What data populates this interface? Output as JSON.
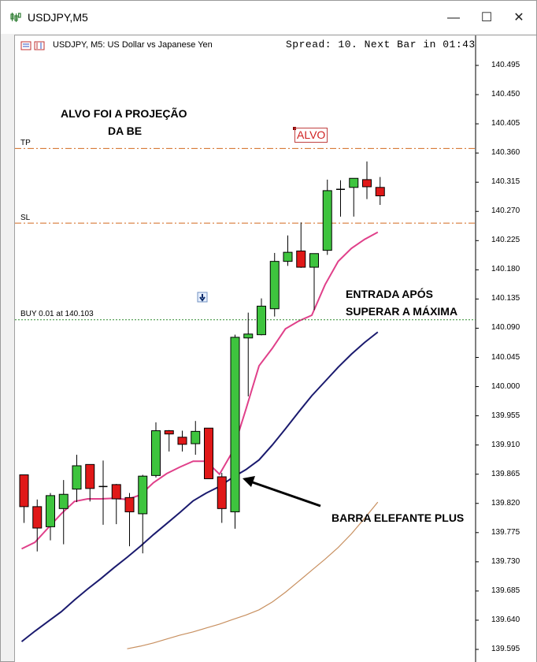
{
  "window": {
    "title": "USDJPY,M5",
    "minimize_label": "—",
    "maximize_label": "☐",
    "close_label": "✕"
  },
  "chart": {
    "symbol_description": "USDJPY, M5:  US Dollar vs Japanese Yen",
    "spread_text": "Spread: 10. Next Bar in 01:43",
    "annotations": {
      "target_line1": "ALVO FOI A PROJEÇÃO",
      "target_line2": "DA BE",
      "entry_line1": "ENTRADA APÓS",
      "entry_line2": "SUPERAR A MÁXIMA",
      "elephant_bar": "BARRA ELEFANTE PLUS",
      "alvo_marker": "ALVO"
    },
    "levels": {
      "tp_label": "TP",
      "sl_label": "SL",
      "buy_label": "BUY 0.01 at 140.103",
      "tp_price": 140.367,
      "sl_price": 140.252,
      "buy_price": 140.103
    },
    "colors": {
      "bull": "#3ec43e",
      "bear": "#e01818",
      "tp_sl_line": "#d2691e",
      "buy_line": "#2e8b2e",
      "ma_fast": "#e0408a",
      "ma_mid": "#1a1a6e",
      "ma_slow": "#c89060"
    }
  },
  "chart_data": {
    "type": "candlestick",
    "symbol": "USDJPY",
    "timeframe": "M5",
    "ylim": [
      139.57,
      140.55
    ],
    "price_ticks": [
      "140.495",
      "140.450",
      "140.405",
      "140.360",
      "140.315",
      "140.270",
      "140.225",
      "140.180",
      "140.135",
      "140.090",
      "140.045",
      "140.000",
      "139.955",
      "139.910",
      "139.865",
      "139.820",
      "139.775",
      "139.730",
      "139.685",
      "139.640",
      "139.595"
    ],
    "candles": [
      {
        "o": 139.864,
        "h": 139.864,
        "l": 139.79,
        "c": 139.815
      },
      {
        "o": 139.815,
        "h": 139.826,
        "l": 139.746,
        "c": 139.782
      },
      {
        "o": 139.784,
        "h": 139.836,
        "l": 139.763,
        "c": 139.832
      },
      {
        "o": 139.812,
        "h": 139.856,
        "l": 139.757,
        "c": 139.834
      },
      {
        "o": 139.842,
        "h": 139.895,
        "l": 139.822,
        "c": 139.878
      },
      {
        "o": 139.88,
        "h": 139.88,
        "l": 139.823,
        "c": 139.843
      },
      {
        "o": 139.846,
        "h": 139.886,
        "l": 139.787,
        "c": 139.846
      },
      {
        "o": 139.849,
        "h": 139.85,
        "l": 139.788,
        "c": 139.827
      },
      {
        "o": 139.829,
        "h": 139.836,
        "l": 139.754,
        "c": 139.807
      },
      {
        "o": 139.804,
        "h": 139.864,
        "l": 139.743,
        "c": 139.862
      },
      {
        "o": 139.863,
        "h": 139.945,
        "l": 139.86,
        "c": 139.932
      },
      {
        "o": 139.932,
        "h": 139.933,
        "l": 139.9,
        "c": 139.927
      },
      {
        "o": 139.922,
        "h": 139.932,
        "l": 139.9,
        "c": 139.911
      },
      {
        "o": 139.912,
        "h": 139.947,
        "l": 139.895,
        "c": 139.931
      },
      {
        "o": 139.936,
        "h": 139.936,
        "l": 139.858,
        "c": 139.858
      },
      {
        "o": 139.861,
        "h": 139.867,
        "l": 139.79,
        "c": 139.812
      },
      {
        "o": 139.807,
        "h": 140.08,
        "l": 139.781,
        "c": 140.076
      },
      {
        "o": 140.075,
        "h": 140.114,
        "l": 139.985,
        "c": 140.081
      },
      {
        "o": 140.08,
        "h": 140.136,
        "l": 140.079,
        "c": 140.124
      },
      {
        "o": 140.12,
        "h": 140.206,
        "l": 140.108,
        "c": 140.193
      },
      {
        "o": 140.193,
        "h": 140.233,
        "l": 140.186,
        "c": 140.207
      },
      {
        "o": 140.209,
        "h": 140.253,
        "l": 140.183,
        "c": 140.184
      },
      {
        "o": 140.184,
        "h": 140.205,
        "l": 140.118,
        "c": 140.205
      },
      {
        "o": 140.21,
        "h": 140.319,
        "l": 140.203,
        "c": 140.302
      },
      {
        "o": 140.304,
        "h": 140.318,
        "l": 140.262,
        "c": 140.303
      },
      {
        "o": 140.307,
        "h": 140.32,
        "l": 140.262,
        "c": 140.321
      },
      {
        "o": 140.319,
        "h": 140.347,
        "l": 140.289,
        "c": 140.308
      },
      {
        "o": 140.307,
        "h": 140.323,
        "l": 140.28,
        "c": 140.294
      }
    ],
    "series": [
      {
        "values": [
          139.75,
          139.76,
          139.782,
          139.804,
          139.823,
          139.827,
          139.827,
          139.828,
          139.826,
          139.833,
          139.852,
          139.866,
          139.876,
          139.885,
          139.885,
          139.865,
          139.9,
          139.965,
          140.032,
          140.059,
          140.089,
          140.101,
          140.11,
          140.157,
          140.193,
          140.213,
          140.227,
          140.238
        ]
      },
      {
        "values": [
          139.607,
          139.623,
          139.638,
          139.653,
          139.671,
          139.688,
          139.704,
          139.721,
          139.737,
          139.754,
          139.772,
          139.789,
          139.806,
          139.824,
          139.836,
          139.846,
          139.86,
          139.872,
          139.887,
          139.91,
          139.935,
          139.961,
          139.986,
          140.008,
          140.03,
          140.05,
          140.068,
          140.084
        ]
      },
      {
        "values": [
          null,
          null,
          null,
          null,
          null,
          null,
          null,
          null,
          139.596,
          139.6,
          139.605,
          139.611,
          139.617,
          139.622,
          139.628,
          139.634,
          139.641,
          139.648,
          139.656,
          139.668,
          139.683,
          139.7,
          139.717,
          139.734,
          139.752,
          139.773,
          139.797,
          139.822
        ]
      }
    ]
  }
}
